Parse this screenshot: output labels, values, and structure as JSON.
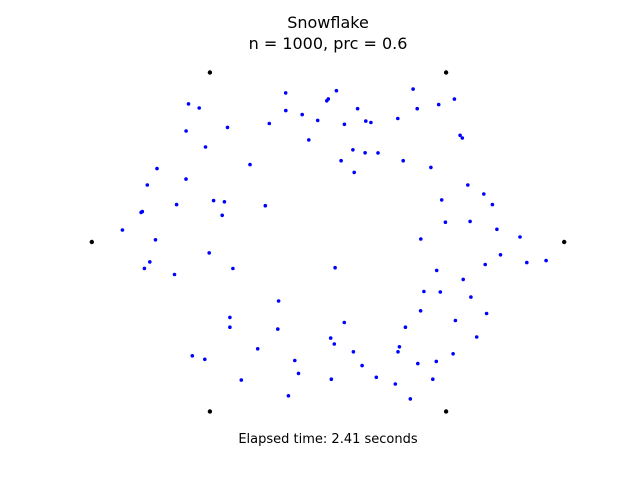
{
  "chart_data": {
    "type": "scatter",
    "title": "Snowflake",
    "subtitle": "n = 1000, prc = 0.6",
    "caption": "Elapsed time: 2.41 seconds",
    "axes_visible": false,
    "xlim": [
      -1.05,
      1.05
    ],
    "ylim": [
      -0.94,
      0.94
    ],
    "colors": {
      "vertices": "#000000",
      "points": "#0000ff"
    },
    "vertices": {
      "x": [
        1.0,
        0.5,
        -0.5,
        -1.0,
        -0.5,
        0.5
      ],
      "y": [
        0.0,
        0.866,
        0.866,
        0.0,
        -0.866,
        -0.866
      ]
    },
    "points": {
      "x": [
        0.0301,
        0.9236,
        -0.0049,
        -0.1094,
        0.4812,
        0.5296,
        -0.7651,
        0.1601,
        -0.5452,
        -0.4155,
        0.8131,
        0.0357,
        0.6016,
        -0.6009,
        0.3021,
        0.6052,
        -0.5215,
        -0.6501,
        0.2115,
        0.2851,
        -0.3301,
        0.0115,
        -0.2091,
        0.2955,
        -0.4025,
        -0.5185,
        -0.1791,
        0.1445,
        0.4585,
        -0.0811,
        -0.1405,
        -0.4481,
        0.5395,
        0.4355,
        0.1815,
        0.0141,
        0.6655,
        -0.3671,
        0.8419,
        -0.7305,
        0.3185,
        0.0555,
        0.3275,
        -0.6411,
        0.4435,
        -0.4255,
        0.6715,
        -0.0435,
        -0.4845,
        -0.5905,
        0.7151,
        0.0011,
        0.2045,
        0.7305,
        -0.4155,
        0.1255,
        0.5351,
        0.5591,
        0.4059,
        -0.7861,
        0.0265,
        -0.2975,
        -0.1675,
        0.4601,
        0.3775,
        0.1055,
        -0.2125,
        0.2965,
        -0.8705,
        -0.5745,
        -0.7241,
        0.1571,
        0.3931,
        -0.6011,
        0.3601,
        0.3485,
        0.6595,
        -0.2655,
        -0.7545,
        0.5921,
        -0.7915,
        0.3921,
        0.1109,
        0.4685,
        0.5725,
        -0.1785,
        0.6295,
        -0.7775,
        0.6959,
        0.4755,
        0.3801,
        -0.1251,
        0.1075,
        -0.5031,
        0.4971,
        -0.2485,
        0.5685,
        -0.4385,
        0.0695,
        0.0691
      ],
      "y": [
        -0.1315,
        -0.0951,
        0.7211,
        0.6511,
        0.2152,
        -0.5711,
        0.2911,
        0.6175,
        0.6845,
        -0.3851,
        0.0255,
        0.7731,
        0.1052,
        0.5671,
        -0.5352,
        -0.2815,
        -0.5995,
        -0.1661,
        0.4551,
        -0.7255,
        0.3955,
        -0.4911,
        -0.3015,
        0.6311,
        -0.1355,
        0.4851,
        0.7615,
        -0.6315,
        -0.6101,
        0.5215,
        -0.6055,
        0.1365,
        -0.4011,
        0.3811,
        0.6105,
        -0.7011,
        -0.1152,
        -0.7055,
        -0.1051,
        0.0111,
        0.4152,
        0.4151,
        -0.4351,
        0.1911,
        -0.7011,
        0.5855,
        -0.3655,
        0.6211,
        0.2115,
        0.7055,
        0.0651,
        0.7311,
        -0.6911,
        -0.0655,
        -0.4352,
        0.6811,
        0.7301,
        0.5451,
        -0.2531,
        0.1555,
        -0.5211,
        -0.5455,
        -0.7855,
        -0.1451,
        0.6811,
        0.4711,
        -0.4451,
        -0.5611,
        0.0611,
        -0.5815,
        0.3751,
        0.4555,
        0.0152,
        0.3211,
        0.7811,
        -0.8015,
        0.2451,
        0.1855,
        -0.1015,
        0.2911,
        0.1511,
        -0.3515,
        0.3555,
        0.7021,
        -0.1911,
        0.6711,
        -0.4855,
        -0.1351,
        0.1911,
        -0.2555,
        -0.6211,
        -0.6711,
        -0.5611,
        -0.0555,
        0.1011,
        0.6055,
        0.5311,
        0.2052,
        0.6011,
        -0.4115
      ]
    }
  }
}
